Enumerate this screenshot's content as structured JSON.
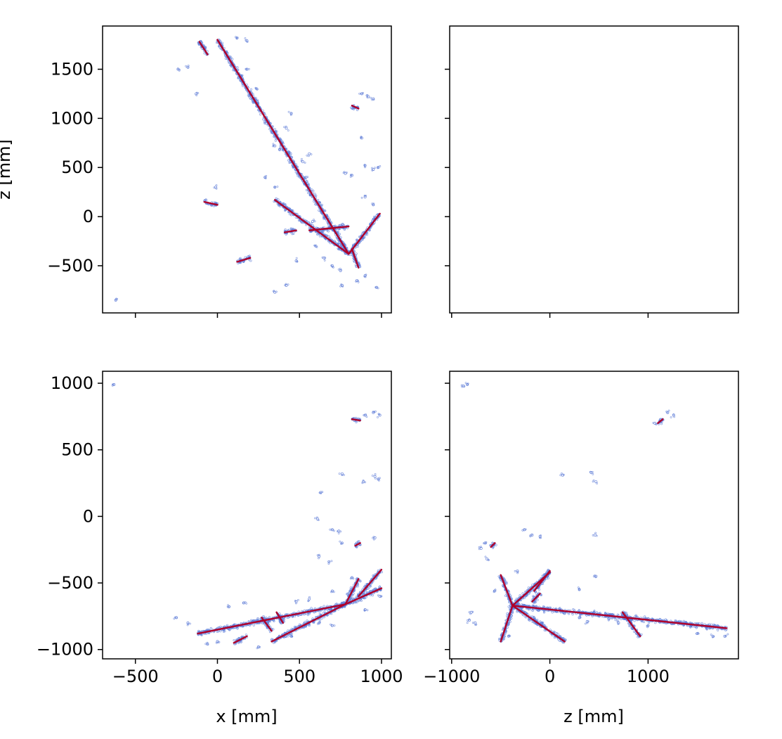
{
  "chart_data": [
    {
      "type": "scatter",
      "panel": "top-left",
      "xlabel": "",
      "ylabel": "z [mm]",
      "xlim": [
        -700,
        1060
      ],
      "ylim": [
        -980,
        1940
      ],
      "xticks": [
        -500,
        0,
        500,
        1000
      ],
      "xtick_labels": [
        "",
        "",
        "",
        ""
      ],
      "yticks": [
        -500,
        0,
        500,
        1000,
        1500
      ],
      "ytick_labels": [
        "−500",
        "0",
        "500",
        "1000",
        "1500"
      ],
      "tracks": [
        {
          "from": [
            0,
            1800
          ],
          "to": [
            800,
            -380
          ]
        },
        {
          "from": [
            350,
            170
          ],
          "to": [
            800,
            -380
          ]
        },
        {
          "from": [
            800,
            -380
          ],
          "to": [
            990,
            30
          ]
        },
        {
          "from": [
            560,
            -140
          ],
          "to": [
            800,
            -100
          ]
        },
        {
          "from": [
            -110,
            1780
          ],
          "to": [
            -60,
            1650
          ]
        },
        {
          "from": [
            -80,
            150
          ],
          "to": [
            0,
            120
          ]
        },
        {
          "from": [
            120,
            -460
          ],
          "to": [
            200,
            -420
          ]
        },
        {
          "from": [
            410,
            -160
          ],
          "to": [
            480,
            -140
          ]
        },
        {
          "from": [
            820,
            1130
          ],
          "to": [
            860,
            1100
          ]
        },
        {
          "from": [
            820,
            -330
          ],
          "to": [
            860,
            -520
          ]
        }
      ],
      "hits": [
        [
          -240,
          1500
        ],
        [
          -180,
          1520
        ],
        [
          -130,
          1250
        ],
        [
          120,
          1820
        ],
        [
          180,
          1790
        ],
        [
          260,
          1100
        ],
        [
          300,
          950
        ],
        [
          350,
          720
        ],
        [
          380,
          680
        ],
        [
          420,
          900
        ],
        [
          450,
          1050
        ],
        [
          520,
          560
        ],
        [
          540,
          400
        ],
        [
          580,
          -50
        ],
        [
          600,
          -300
        ],
        [
          650,
          -420
        ],
        [
          700,
          -500
        ],
        [
          750,
          -550
        ],
        [
          760,
          -700
        ],
        [
          880,
          1250
        ],
        [
          920,
          1220
        ],
        [
          950,
          1200
        ],
        [
          900,
          520
        ],
        [
          950,
          480
        ],
        [
          980,
          500
        ],
        [
          780,
          440
        ],
        [
          820,
          420
        ],
        [
          850,
          -650
        ],
        [
          900,
          -600
        ],
        [
          970,
          -720
        ],
        [
          350,
          -770
        ],
        [
          420,
          -700
        ],
        [
          -620,
          -850
        ],
        [
          -10,
          300
        ],
        [
          290,
          400
        ],
        [
          350,
          300
        ],
        [
          480,
          -450
        ],
        [
          700,
          -250
        ],
        [
          950,
          120
        ],
        [
          900,
          200
        ],
        [
          180,
          1500
        ],
        [
          240,
          1300
        ],
        [
          480,
          480
        ],
        [
          560,
          640
        ],
        [
          880,
          800
        ]
      ]
    },
    {
      "type": "scatter",
      "panel": "top-right",
      "xlabel": "",
      "ylabel": "",
      "xlim": [
        -1020,
        1920
      ],
      "ylim": [
        -980,
        1940
      ],
      "xticks": [
        -1000,
        0,
        1000
      ],
      "xtick_labels": [
        "",
        "",
        ""
      ],
      "yticks": [
        -500,
        0,
        500,
        1000,
        1500
      ],
      "ytick_labels": [
        "",
        "",
        "",
        "",
        ""
      ],
      "tracks": [],
      "hits": []
    },
    {
      "type": "scatter",
      "panel": "bottom-left",
      "xlabel": "x [mm]",
      "ylabel": "",
      "xlim": [
        -700,
        1060
      ],
      "ylim": [
        -1070,
        1090
      ],
      "xticks": [
        -500,
        0,
        500,
        1000
      ],
      "xtick_labels": [
        "−500",
        "0",
        "500",
        "1000"
      ],
      "yticks": [
        -1000,
        -500,
        0,
        500,
        1000
      ],
      "ytick_labels": [
        "−1000",
        "−500",
        "0",
        "500",
        "1000"
      ],
      "tracks": [
        {
          "from": [
            -120,
            -880
          ],
          "to": [
            780,
            -660
          ]
        },
        {
          "from": [
            330,
            -940
          ],
          "to": [
            780,
            -660
          ]
        },
        {
          "from": [
            780,
            -660
          ],
          "to": [
            860,
            -470
          ]
        },
        {
          "from": [
            780,
            -660
          ],
          "to": [
            1000,
            -540
          ]
        },
        {
          "from": [
            860,
            -600
          ],
          "to": [
            1000,
            -400
          ]
        },
        {
          "from": [
            270,
            -760
          ],
          "to": [
            330,
            -860
          ]
        },
        {
          "from": [
            360,
            -720
          ],
          "to": [
            400,
            -800
          ]
        },
        {
          "from": [
            100,
            -950
          ],
          "to": [
            180,
            -900
          ]
        },
        {
          "from": [
            820,
            730
          ],
          "to": [
            870,
            720
          ]
        },
        {
          "from": [
            840,
            -220
          ],
          "to": [
            870,
            -200
          ]
        }
      ],
      "hits": [
        [
          -630,
          990
        ],
        [
          -250,
          -760
        ],
        [
          -180,
          -800
        ],
        [
          950,
          780
        ],
        [
          990,
          760
        ],
        [
          900,
          760
        ],
        [
          760,
          320
        ],
        [
          960,
          300
        ],
        [
          980,
          280
        ],
        [
          890,
          260
        ],
        [
          630,
          180
        ],
        [
          610,
          -20
        ],
        [
          700,
          -100
        ],
        [
          740,
          -110
        ],
        [
          760,
          -200
        ],
        [
          960,
          -160
        ],
        [
          620,
          -300
        ],
        [
          680,
          -340
        ],
        [
          560,
          -620
        ],
        [
          480,
          -640
        ],
        [
          580,
          -780
        ],
        [
          620,
          -800
        ],
        [
          160,
          -650
        ],
        [
          70,
          -680
        ],
        [
          0,
          -940
        ],
        [
          -60,
          -960
        ],
        [
          250,
          -980
        ],
        [
          450,
          -900
        ],
        [
          700,
          -820
        ],
        [
          900,
          -700
        ],
        [
          990,
          -600
        ],
        [
          820,
          -460
        ],
        [
          700,
          -560
        ]
      ]
    },
    {
      "type": "scatter",
      "panel": "bottom-right",
      "xlabel": "z [mm]",
      "ylabel": "",
      "xlim": [
        -1020,
        1920
      ],
      "ylim": [
        -1070,
        1090
      ],
      "xticks": [
        -1000,
        0,
        1000
      ],
      "xtick_labels": [
        "−1000",
        "0",
        "1000"
      ],
      "yticks": [
        -1000,
        -500,
        0,
        500,
        1000
      ],
      "ytick_labels": [
        "",
        "",
        "",
        "",
        ""
      ],
      "tracks": [
        {
          "from": [
            -380,
            -670
          ],
          "to": [
            1800,
            -840
          ]
        },
        {
          "from": [
            -380,
            -670
          ],
          "to": [
            150,
            -940
          ]
        },
        {
          "from": [
            -380,
            -670
          ],
          "to": [
            0,
            -420
          ]
        },
        {
          "from": [
            -380,
            -670
          ],
          "to": [
            -500,
            -940
          ]
        },
        {
          "from": [
            -380,
            -670
          ],
          "to": [
            -500,
            -440
          ]
        },
        {
          "from": [
            -160,
            -560
          ],
          "to": [
            0,
            -410
          ]
        },
        {
          "from": [
            740,
            -720
          ],
          "to": [
            920,
            -900
          ]
        },
        {
          "from": [
            1100,
            700
          ],
          "to": [
            1150,
            730
          ]
        },
        {
          "from": [
            -600,
            -230
          ],
          "to": [
            -560,
            -200
          ]
        },
        {
          "from": [
            -180,
            -640
          ],
          "to": [
            -100,
            -580
          ]
        }
      ],
      "hits": [
        [
          -880,
          980
        ],
        [
          -840,
          990
        ],
        [
          1200,
          780
        ],
        [
          1260,
          760
        ],
        [
          1070,
          700
        ],
        [
          130,
          310
        ],
        [
          420,
          330
        ],
        [
          470,
          260
        ],
        [
          460,
          -140
        ],
        [
          470,
          -450
        ],
        [
          -260,
          -100
        ],
        [
          -180,
          -140
        ],
        [
          -330,
          -410
        ],
        [
          -700,
          -240
        ],
        [
          -640,
          -320
        ],
        [
          -800,
          -720
        ],
        [
          -820,
          -780
        ],
        [
          -760,
          -800
        ],
        [
          -420,
          -900
        ],
        [
          -80,
          -800
        ],
        [
          300,
          -760
        ],
        [
          380,
          -790
        ],
        [
          700,
          -800
        ],
        [
          1000,
          -820
        ],
        [
          1500,
          -880
        ],
        [
          1660,
          -900
        ],
        [
          1780,
          -900
        ],
        [
          450,
          -720
        ],
        [
          600,
          -770
        ],
        [
          -660,
          -200
        ],
        [
          -100,
          -150
        ],
        [
          300,
          -550
        ],
        [
          -560,
          -560
        ]
      ]
    }
  ]
}
